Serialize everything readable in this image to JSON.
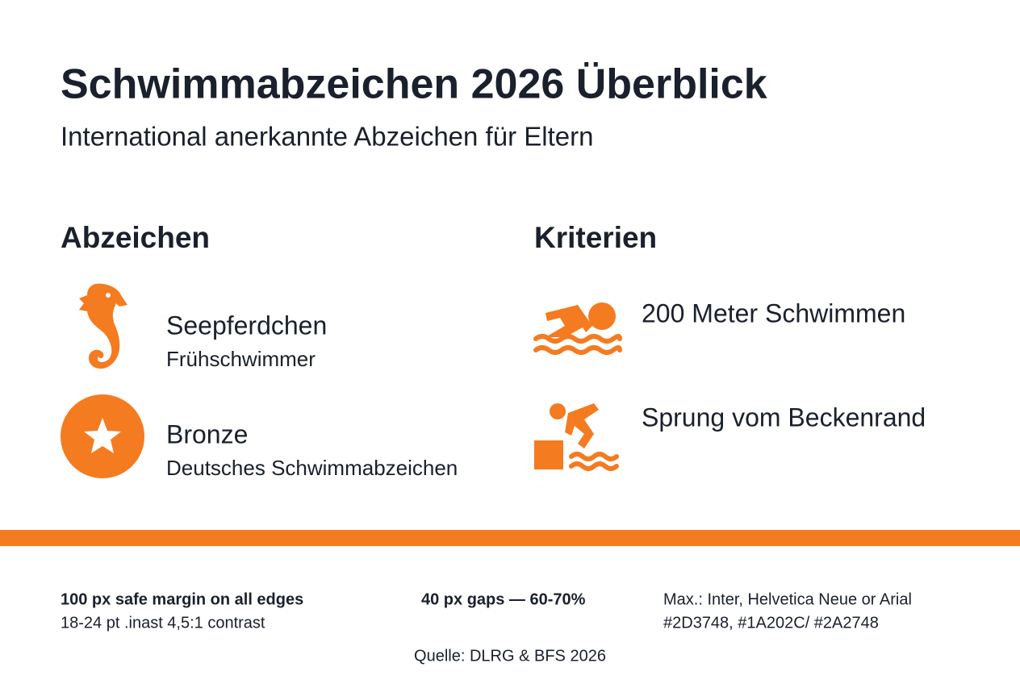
{
  "header": {
    "title": "Schwimmabzeichen 2026 Überblick",
    "subtitle": "International anerkannte Abzeichen für Eltern"
  },
  "badges": {
    "heading": "Abzeichen",
    "items": [
      {
        "name": "Seepferdchen",
        "description": "Frühschwimmer"
      },
      {
        "name": "Bronze",
        "description": "Deutsches Schwimmabzeichen"
      }
    ]
  },
  "criteria": {
    "heading": "Kriterien",
    "items": [
      "200 Meter Schwimmen",
      "Sprung vom Beckenrand"
    ]
  },
  "footer": {
    "notes": [
      {
        "bold": "100 px safe margin on all edges",
        "text": "18-24 pt .inast 4,5:1 contrast"
      },
      {
        "bold": "40 px gaps — 60-70%"
      },
      {
        "text": "Max.: Inter, Helvetica Neue or Arial",
        "text2": "#2D3748, #1A202C/ #2A2748"
      }
    ],
    "source": "Quelle: DLRG & BFS 2026"
  }
}
